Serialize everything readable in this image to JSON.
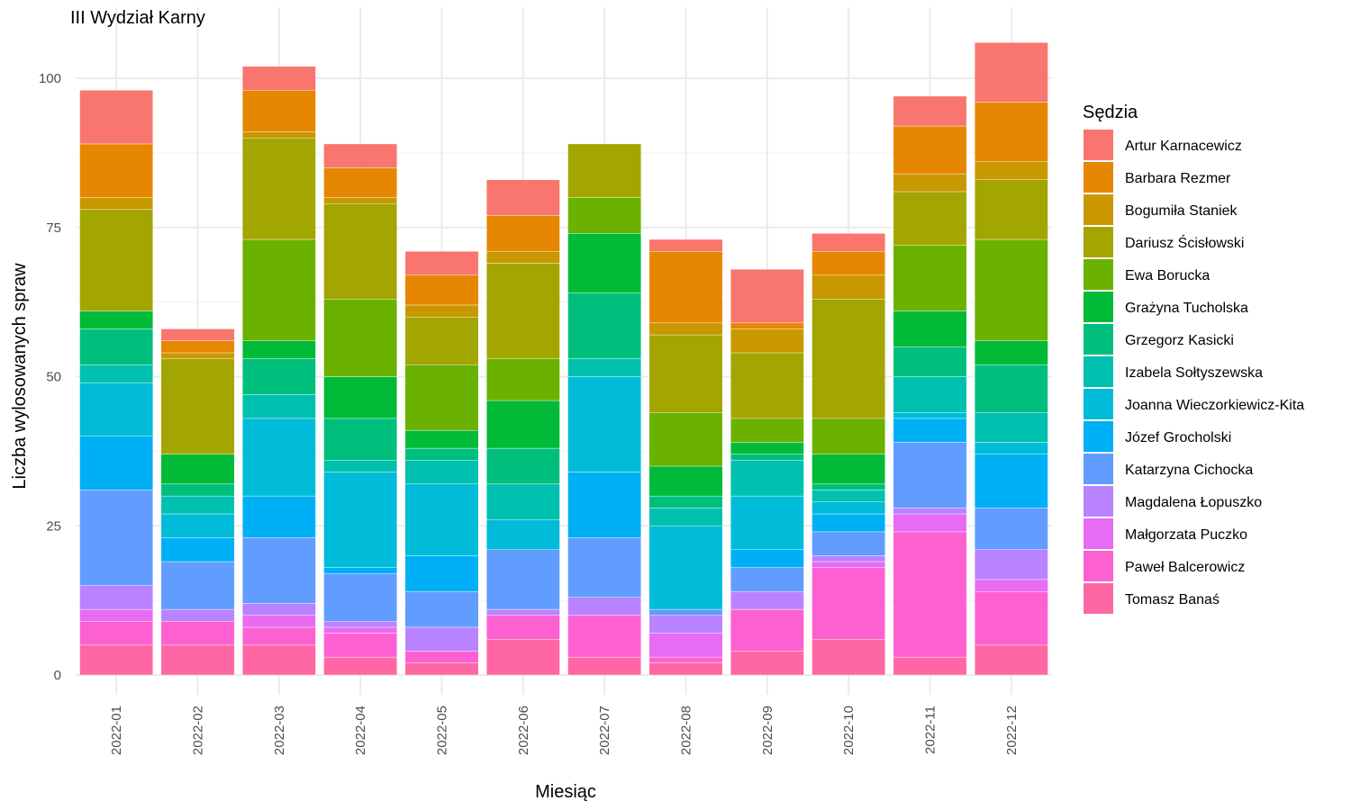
{
  "chart_data": {
    "type": "bar",
    "stacked": true,
    "title": "III Wydział Karny",
    "xlabel": "Miesiąc",
    "ylabel": "Liczba wylosowanych spraw",
    "ylim": [
      0,
      108
    ],
    "yticks": [
      0,
      25,
      50,
      75,
      100
    ],
    "grid": true,
    "legend_title": "Sędzia",
    "legend_position": "right",
    "categories": [
      "2022-01",
      "2022-02",
      "2022-03",
      "2022-04",
      "2022-05",
      "2022-06",
      "2022-07",
      "2022-08",
      "2022-09",
      "2022-10",
      "2022-11",
      "2022-12"
    ],
    "series": [
      {
        "name": "Artur Karnacewicz",
        "color": "#F8766D",
        "values": [
          9,
          2,
          4,
          4,
          4,
          6,
          0,
          2,
          9,
          3,
          5,
          10
        ]
      },
      {
        "name": "Barbara Rezmer",
        "color": "#E58700",
        "values": [
          9,
          2,
          7,
          5,
          5,
          6,
          0,
          12,
          1,
          4,
          8,
          10
        ]
      },
      {
        "name": "Bogumiła Staniek",
        "color": "#C99800",
        "values": [
          2,
          1,
          1,
          1,
          2,
          2,
          0,
          2,
          4,
          4,
          3,
          3
        ]
      },
      {
        "name": "Dariusz Ścisłowski",
        "color": "#A3A500",
        "values": [
          17,
          16,
          17,
          16,
          8,
          16,
          9,
          13,
          11,
          20,
          9,
          10
        ]
      },
      {
        "name": "Ewa Borucka",
        "color": "#6BB100",
        "values": [
          0,
          0,
          17,
          13,
          11,
          7,
          6,
          9,
          4,
          6,
          11,
          17
        ]
      },
      {
        "name": "Grażyna Tucholska",
        "color": "#00BA38",
        "values": [
          3,
          5,
          3,
          7,
          3,
          8,
          10,
          5,
          2,
          5,
          6,
          4
        ]
      },
      {
        "name": "Grzegorz Kasicki",
        "color": "#00BF7D",
        "values": [
          6,
          2,
          6,
          7,
          2,
          6,
          11,
          2,
          1,
          1,
          5,
          8
        ]
      },
      {
        "name": "Izabela Sołtyszewska",
        "color": "#00C0AF",
        "values": [
          3,
          3,
          4,
          2,
          4,
          6,
          3,
          3,
          6,
          2,
          6,
          5
        ]
      },
      {
        "name": "Joanna Wieczorkiewicz-Kita",
        "color": "#00BCD8",
        "values": [
          9,
          4,
          13,
          16,
          12,
          5,
          16,
          14,
          9,
          2,
          1,
          2
        ]
      },
      {
        "name": "Józef Grocholski",
        "color": "#00B0F6",
        "values": [
          9,
          4,
          7,
          1,
          6,
          0,
          11,
          0,
          3,
          3,
          4,
          9
        ]
      },
      {
        "name": "Katarzyna Cichocka",
        "color": "#619CFF",
        "values": [
          16,
          8,
          11,
          8,
          6,
          10,
          10,
          1,
          4,
          4,
          11,
          7
        ]
      },
      {
        "name": "Magdalena Łopuszko",
        "color": "#B983FF",
        "values": [
          4,
          2,
          2,
          1,
          4,
          1,
          3,
          3,
          3,
          1,
          1,
          5
        ]
      },
      {
        "name": "Małgorzata Puczko",
        "color": "#E76BF3",
        "values": [
          2,
          0,
          2,
          1,
          0,
          0,
          0,
          4,
          0,
          1,
          3,
          2
        ]
      },
      {
        "name": "Paweł Balcerowicz",
        "color": "#FD61D1",
        "values": [
          4,
          4,
          3,
          4,
          2,
          4,
          7,
          1,
          7,
          12,
          21,
          9
        ]
      },
      {
        "name": "Tomasz Banaś",
        "color": "#FF67A4",
        "values": [
          5,
          5,
          5,
          3,
          2,
          6,
          3,
          2,
          4,
          6,
          3,
          5
        ]
      }
    ]
  }
}
